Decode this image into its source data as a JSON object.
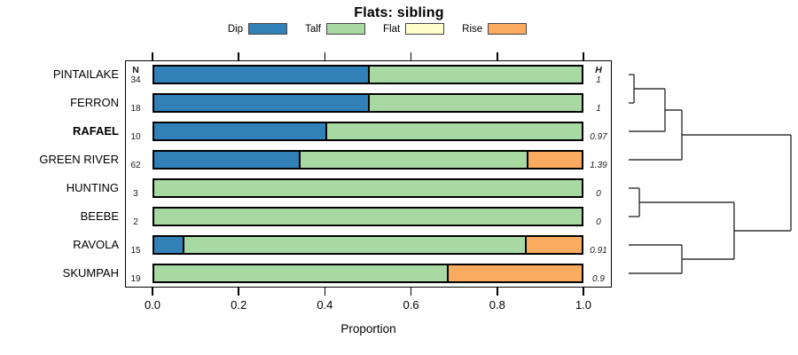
{
  "title": "Flats: sibling",
  "legend": {
    "items": [
      {
        "label": "Dip",
        "color": "#3181b8"
      },
      {
        "label": "Talf",
        "color": "#a8d9a2"
      },
      {
        "label": "Flat",
        "color": "#ffffcc"
      },
      {
        "label": "Rise",
        "color": "#fbab60"
      }
    ]
  },
  "chart_data": {
    "type": "bar",
    "variant": "horizontal-stacked-with-dendrogram",
    "title": "Flats: sibling",
    "xlabel": "Proportion",
    "xlim": [
      0,
      1
    ],
    "xticks": [
      "0.0",
      "0.2",
      "0.4",
      "0.6",
      "0.8",
      "1.0"
    ],
    "grid": false,
    "legend_position": "top",
    "series_names": [
      "Dip",
      "Talf",
      "Flat",
      "Rise"
    ],
    "series_colors": [
      "#3181b8",
      "#a8d9a2",
      "#ffffcc",
      "#fbab60"
    ],
    "n_header": "N",
    "h_header": "H",
    "rows": [
      {
        "label": "PINTAILAKE",
        "bold": false,
        "n": "34",
        "h": "1",
        "values": [
          0.5,
          0.5,
          0,
          0
        ]
      },
      {
        "label": "FERRON",
        "bold": false,
        "n": "18",
        "h": "1",
        "values": [
          0.5,
          0.5,
          0,
          0
        ]
      },
      {
        "label": "RAFAEL",
        "bold": true,
        "n": "10",
        "h": "0.97",
        "values": [
          0.4,
          0.6,
          0,
          0
        ]
      },
      {
        "label": "GREEN RIVER",
        "bold": false,
        "n": "62",
        "h": "1.39",
        "values": [
          0.339,
          0.532,
          0,
          0.129
        ]
      },
      {
        "label": "HUNTING",
        "bold": false,
        "n": "3",
        "h": "0",
        "values": [
          0,
          1,
          0,
          0
        ]
      },
      {
        "label": "BEEBE",
        "bold": false,
        "n": "2",
        "h": "0",
        "values": [
          0,
          1,
          0,
          0
        ]
      },
      {
        "label": "RAVOLA",
        "bold": false,
        "n": "15",
        "h": "0.91",
        "values": [
          0.067,
          0.8,
          0,
          0.133
        ]
      },
      {
        "label": "SKUMPAH",
        "bold": false,
        "n": "19",
        "h": "0.9",
        "values": [
          0,
          0.684,
          0,
          0.316
        ]
      }
    ],
    "dendrogram": {
      "leaf_order": [
        "PINTAILAKE",
        "FERRON",
        "RAFAEL",
        "GREEN RIVER",
        "HUNTING",
        "BEEBE",
        "RAVOLA",
        "SKUMPAH"
      ],
      "merges": [
        {
          "a": "L0",
          "b": "L1",
          "height": 0.033
        },
        {
          "a": "M0",
          "b": "L2",
          "height": 0.224
        },
        {
          "a": "M1",
          "b": "L3",
          "height": 0.328
        },
        {
          "a": "L4",
          "b": "L5",
          "height": 0.066
        },
        {
          "a": "L6",
          "b": "L7",
          "height": 0.328
        },
        {
          "a": "M3",
          "b": "M4",
          "height": 0.65
        },
        {
          "a": "M2",
          "b": "M5",
          "height": 1.0
        }
      ]
    }
  }
}
